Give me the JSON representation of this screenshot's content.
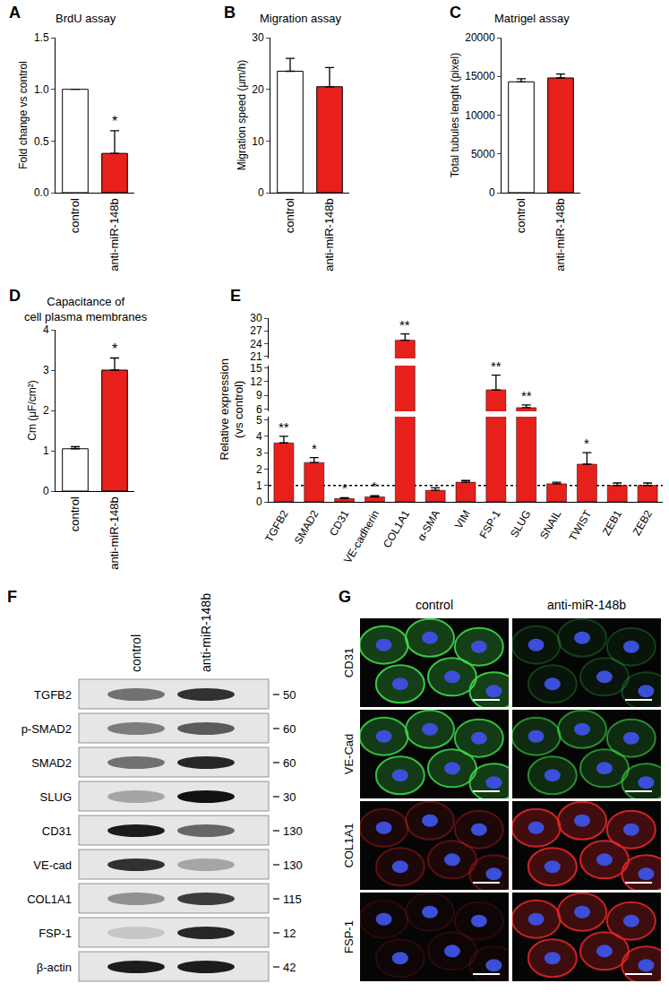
{
  "chart_data": [
    {
      "panel": "A",
      "type": "bar",
      "title": "BrdU assay",
      "categories": [
        "control",
        "anti-miR-148b"
      ],
      "values": [
        1.0,
        0.38
      ],
      "error": [
        0,
        0.22
      ],
      "colors": [
        "#ffffff",
        "#e8201c"
      ],
      "ylim": [
        0,
        1.5
      ],
      "yticks": [
        {
          "value": 0,
          "label": "0.0"
        },
        {
          "value": 0.5,
          "label": "0.5"
        },
        {
          "value": 1,
          "label": "1.0"
        },
        {
          "value": 1.5,
          "label": "1.5"
        }
      ],
      "y_label": "Fold change vs control",
      "annotations": [
        {
          "category": "anti-miR-148b",
          "text": "*"
        }
      ]
    },
    {
      "panel": "B",
      "type": "bar",
      "title": "Migration assay",
      "categories": [
        "control",
        "anti-miR-148b"
      ],
      "values": [
        23.5,
        20.5
      ],
      "error": [
        2.5,
        3.7
      ],
      "colors": [
        "#ffffff",
        "#e8201c"
      ],
      "ylim": [
        0,
        30
      ],
      "yticks": [
        0,
        10,
        20,
        30
      ],
      "y_label": "Migration speed (μm/h)",
      "annotations": []
    },
    {
      "panel": "C",
      "type": "bar",
      "title": "Matrigel assay",
      "categories": [
        "control",
        "anti-miR-148b"
      ],
      "values": [
        14300,
        14800
      ],
      "error": [
        400,
        500
      ],
      "colors": [
        "#ffffff",
        "#e8201c"
      ],
      "ylim": [
        0,
        20000
      ],
      "yticks": [
        0,
        5000,
        10000,
        15000,
        20000
      ],
      "y_label": "Total tubules lenght (pixel)",
      "annotations": []
    },
    {
      "panel": "D",
      "type": "bar",
      "title": "Capacitance of\ncell plasma membranes",
      "categories": [
        "control",
        "anti-miR-148b"
      ],
      "values": [
        1.05,
        3.0
      ],
      "error": [
        0.05,
        0.3
      ],
      "colors": [
        "#ffffff",
        "#e8201c"
      ],
      "ylim": [
        0,
        4
      ],
      "yticks": [
        0,
        1,
        2,
        3,
        4
      ],
      "y_label": "Cm (μF/cm²)",
      "annotations": [
        {
          "category": "anti-miR-148b",
          "text": "*"
        }
      ]
    },
    {
      "panel": "E",
      "type": "bar",
      "categories": [
        "TGFB2",
        "SMAD2",
        "CD31",
        "VE-cadherin",
        "COL1A1",
        "α-SMA",
        "VIM",
        "FSP-1",
        "SLUG",
        "SNAIL",
        "TWIST",
        "ZEB1",
        "ZEB2"
      ],
      "values": [
        3.6,
        2.4,
        0.2,
        0.3,
        24.8,
        0.7,
        1.2,
        10.2,
        6.3,
        1.1,
        2.3,
        1.0,
        1.0
      ],
      "error": [
        0.4,
        0.3,
        0.05,
        0.08,
        1.5,
        0.15,
        0.1,
        3.2,
        0.6,
        0.1,
        0.7,
        0.15,
        0.15
      ],
      "color": "#e8201c",
      "y_segments": [
        {
          "ylim": [
            0,
            5.2
          ],
          "yticks": [
            0,
            1,
            2,
            3,
            4,
            5
          ]
        },
        {
          "ylim": [
            5.5,
            15.5
          ],
          "yticks": [
            6,
            9,
            12,
            15
          ]
        },
        {
          "ylim": [
            20.5,
            30
          ],
          "yticks": [
            21,
            24,
            27,
            30
          ]
        }
      ],
      "reference": 1,
      "y_label": "Relative expression\n(vs control)",
      "annotations": [
        {
          "category": "TGFB2",
          "text": "**"
        },
        {
          "category": "SMAD2",
          "text": "*"
        },
        {
          "category": "CD31",
          "text": "*"
        },
        {
          "category": "VE-cadherin",
          "text": "*"
        },
        {
          "category": "COL1A1",
          "text": "**"
        },
        {
          "category": "FSP-1",
          "text": "**"
        },
        {
          "category": "SLUG",
          "text": "**"
        },
        {
          "category": "TWIST",
          "text": "*"
        }
      ]
    }
  ],
  "blot": {
    "panel": "F",
    "columns": [
      "control",
      "anti-miR-148b"
    ],
    "rows": [
      {
        "label": "TGFB2",
        "kDa": 50,
        "bands": [
          0.55,
          0.85
        ]
      },
      {
        "label": "p-SMAD2",
        "kDa": 60,
        "bands": [
          0.5,
          0.65
        ]
      },
      {
        "label": "SMAD2",
        "kDa": 60,
        "bands": [
          0.55,
          0.9
        ]
      },
      {
        "label": "SLUG",
        "kDa": 30,
        "bands": [
          0.3,
          1.0
        ]
      },
      {
        "label": "CD31",
        "kDa": 130,
        "bands": [
          0.95,
          0.6
        ]
      },
      {
        "label": "VE-cad",
        "kDa": 130,
        "bands": [
          0.85,
          0.3
        ]
      },
      {
        "label": "COL1A1",
        "kDa": 115,
        "bands": [
          0.4,
          0.8
        ]
      },
      {
        "label": "FSP-1",
        "kDa": 12,
        "bands": [
          0.15,
          0.9
        ]
      },
      {
        "label": "β-actin",
        "kDa": 42,
        "bands": [
          0.95,
          0.95
        ]
      }
    ]
  },
  "immunofluorescence": {
    "panel": "G",
    "columns": [
      "control",
      "anti-miR-148b"
    ],
    "rows": [
      {
        "label": "CD31",
        "color": "#3ddc4a",
        "signal": [
          0.9,
          0.25
        ]
      },
      {
        "label": "VE-Cad",
        "color": "#3ddc4a",
        "signal": [
          0.85,
          0.6
        ]
      },
      {
        "label": "COL1A1",
        "color": "#e8262a",
        "signal": [
          0.35,
          0.9
        ]
      },
      {
        "label": "FSP-1",
        "color": "#e8262a",
        "signal": [
          0.15,
          0.85
        ]
      }
    ]
  }
}
